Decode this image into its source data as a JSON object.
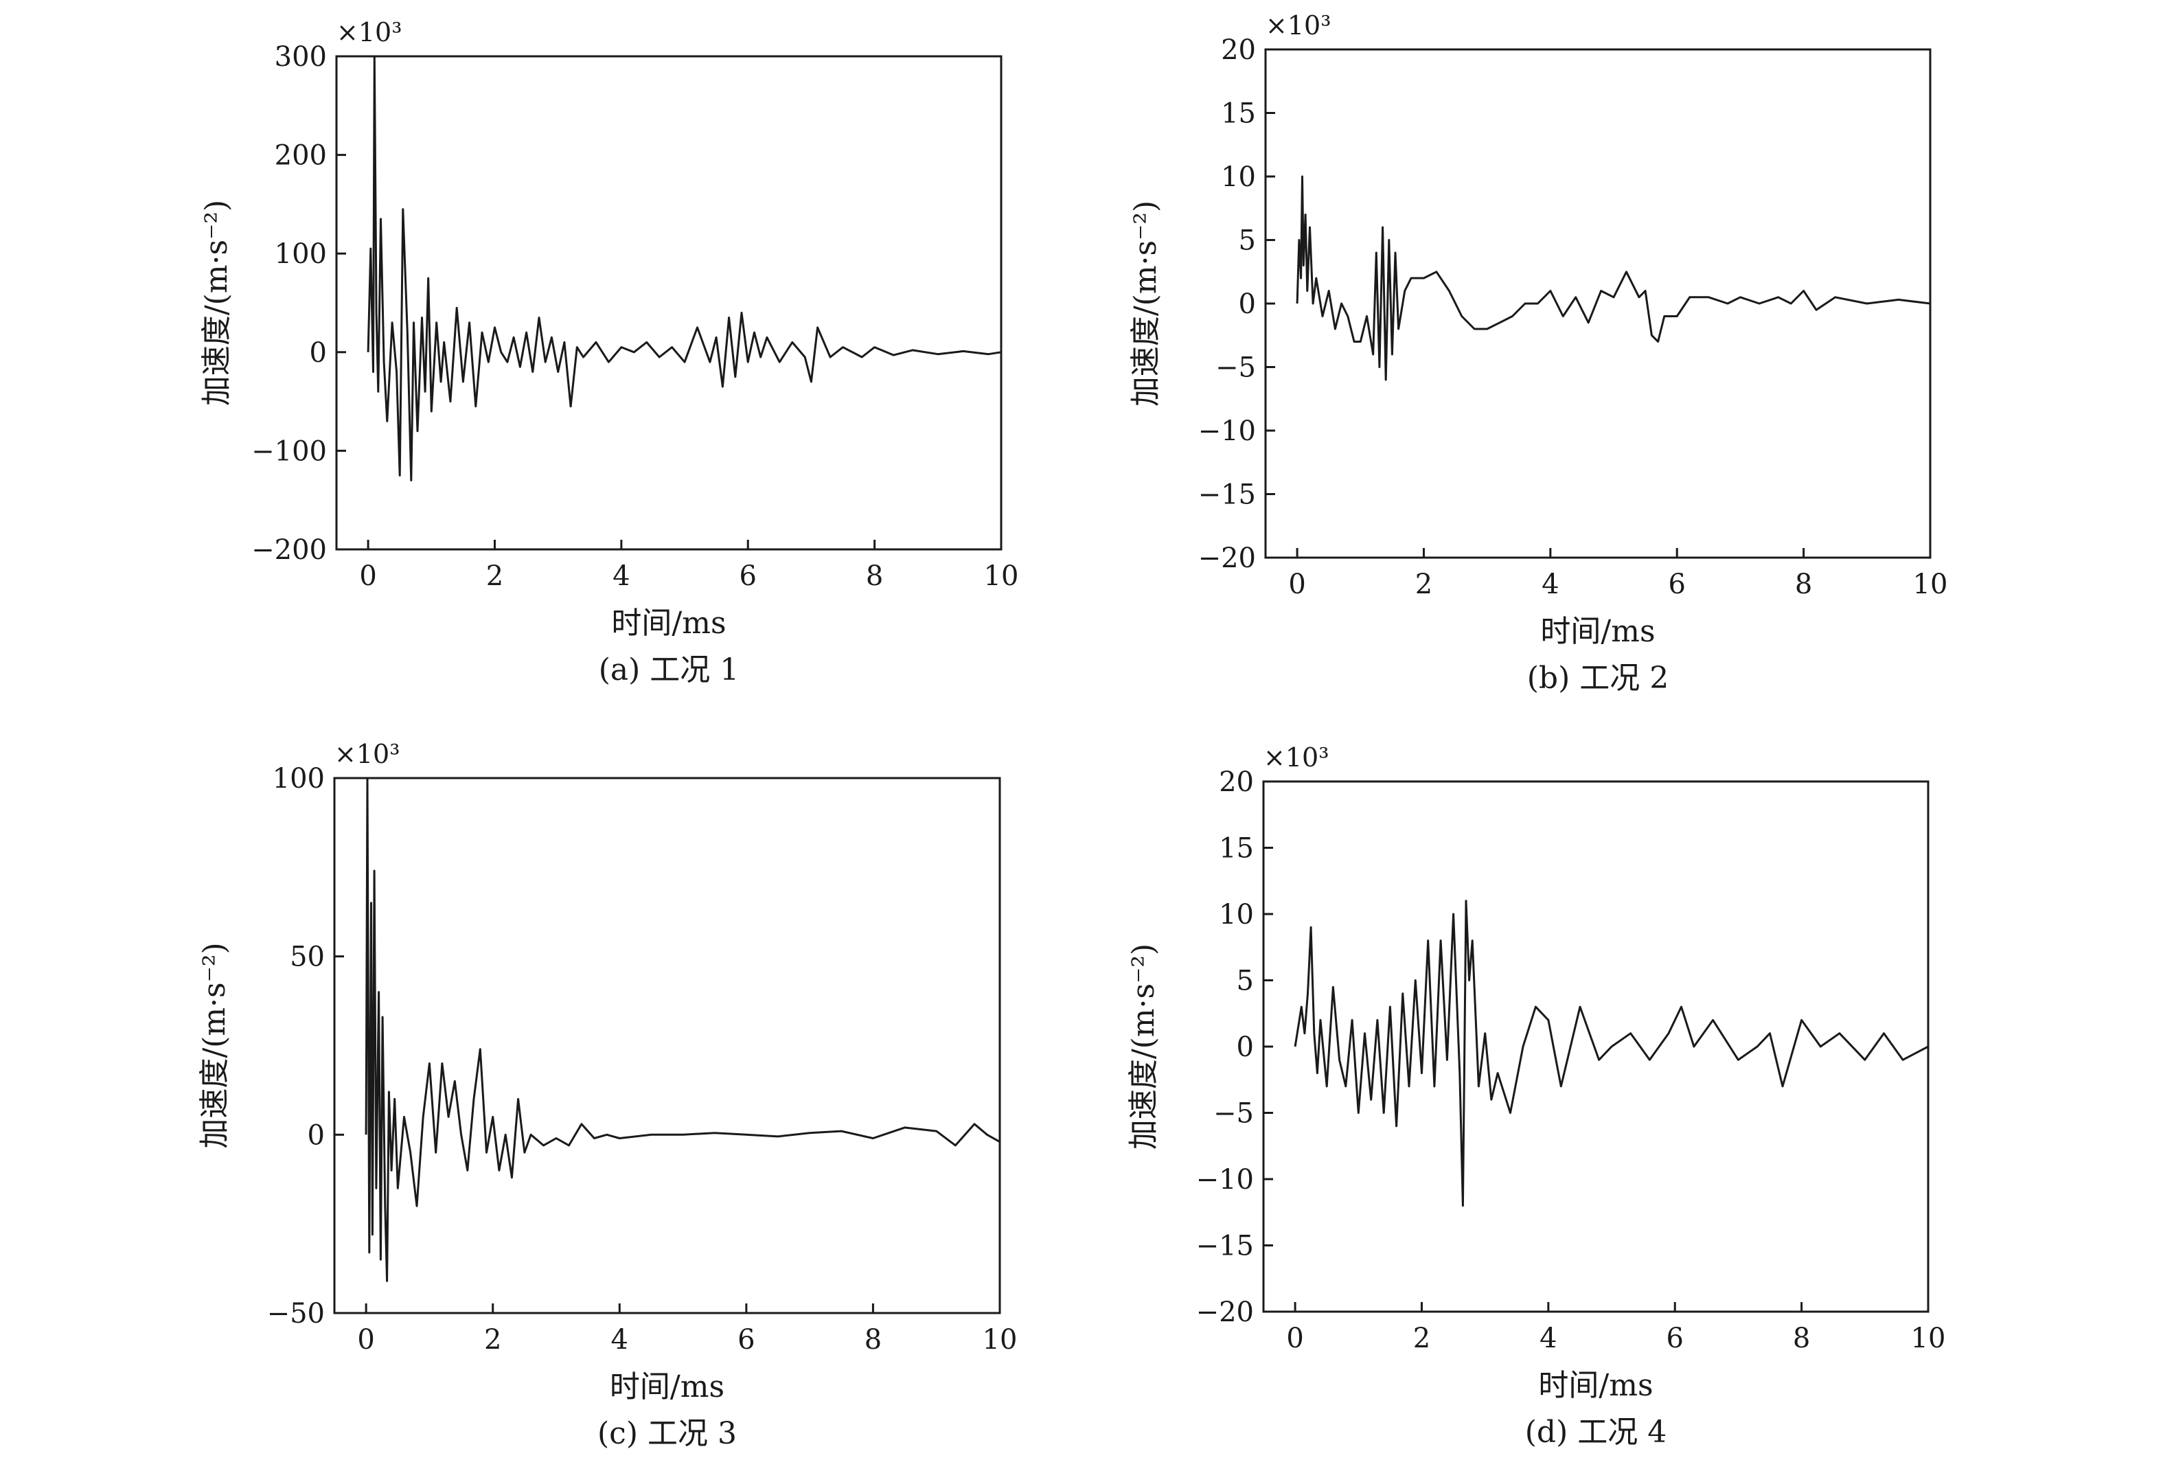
{
  "chart_data": [
    {
      "type": "line",
      "caption": "(a) 工况 1",
      "xlabel": "时间/ms",
      "ylabel": "加速度/(m·s⁻²)",
      "multiplier": "×10³",
      "xlim": [
        -0.5,
        10
      ],
      "ylim": [
        -200,
        300
      ],
      "xticks": [
        0,
        2,
        4,
        6,
        8,
        10
      ],
      "yticks": [
        -200,
        -100,
        0,
        100,
        200,
        300
      ],
      "xtick_labels": [
        "0",
        "2",
        "4",
        "6",
        "8",
        "10"
      ],
      "ytick_labels": [
        "−200",
        "−100",
        "0",
        "100",
        "200",
        "300"
      ],
      "series": [
        {
          "x": [
            0,
            0.04,
            0.08,
            0.1,
            0.13,
            0.16,
            0.2,
            0.25,
            0.3,
            0.38,
            0.45,
            0.5,
            0.55,
            0.62,
            0.68,
            0.72,
            0.78,
            0.85,
            0.9,
            0.95,
            1.0,
            1.08,
            1.15,
            1.2,
            1.3,
            1.4,
            1.5,
            1.6,
            1.7,
            1.8,
            1.9,
            2.0,
            2.1,
            2.2,
            2.3,
            2.4,
            2.5,
            2.6,
            2.7,
            2.8,
            2.9,
            3.0,
            3.1,
            3.2,
            3.3,
            3.4,
            3.6,
            3.8,
            4.0,
            4.2,
            4.4,
            4.6,
            4.8,
            5.0,
            5.2,
            5.4,
            5.5,
            5.6,
            5.7,
            5.8,
            5.9,
            6.0,
            6.1,
            6.2,
            6.3,
            6.5,
            6.7,
            6.9,
            7.0,
            7.1,
            7.3,
            7.5,
            7.8,
            8.0,
            8.3,
            8.6,
            9.0,
            9.4,
            9.8,
            10.0
          ],
          "y": [
            0,
            105,
            -20,
            300,
            40,
            -40,
            135,
            -10,
            -70,
            30,
            -20,
            -125,
            145,
            20,
            -130,
            30,
            -80,
            35,
            -40,
            75,
            -60,
            30,
            -30,
            10,
            -50,
            45,
            -30,
            30,
            -55,
            20,
            -10,
            25,
            0,
            -10,
            15,
            -15,
            20,
            -20,
            35,
            -10,
            15,
            -20,
            10,
            -55,
            5,
            -5,
            10,
            -10,
            5,
            0,
            10,
            -5,
            5,
            -10,
            25,
            -10,
            15,
            -35,
            35,
            -25,
            40,
            -10,
            20,
            -5,
            15,
            -10,
            10,
            -5,
            -30,
            25,
            -5,
            5,
            -5,
            5,
            -3,
            2,
            -2,
            1,
            -2,
            0
          ]
        }
      ]
    },
    {
      "type": "line",
      "caption": "(b) 工况 2",
      "xlabel": "时间/ms",
      "ylabel": "加速度/(m·s⁻²)",
      "multiplier": "×10³",
      "xlim": [
        -0.5,
        10
      ],
      "ylim": [
        -20,
        20
      ],
      "xticks": [
        0,
        2,
        4,
        6,
        8,
        10
      ],
      "yticks": [
        -20,
        -15,
        -10,
        -5,
        0,
        5,
        10,
        15,
        20
      ],
      "xtick_labels": [
        "0",
        "2",
        "4",
        "6",
        "8",
        "10"
      ],
      "ytick_labels": [
        "−20",
        "−15",
        "−10",
        "−5",
        "0",
        "5",
        "10",
        "15",
        "20"
      ],
      "series": [
        {
          "x": [
            0,
            0.03,
            0.06,
            0.08,
            0.1,
            0.13,
            0.16,
            0.2,
            0.25,
            0.3,
            0.4,
            0.5,
            0.6,
            0.7,
            0.8,
            0.9,
            1.0,
            1.1,
            1.2,
            1.25,
            1.3,
            1.35,
            1.4,
            1.45,
            1.5,
            1.55,
            1.6,
            1.7,
            1.8,
            2.0,
            2.2,
            2.4,
            2.6,
            2.8,
            3.0,
            3.2,
            3.4,
            3.6,
            3.8,
            4.0,
            4.2,
            4.4,
            4.6,
            4.8,
            5.0,
            5.2,
            5.4,
            5.5,
            5.6,
            5.7,
            5.8,
            6.0,
            6.2,
            6.5,
            6.8,
            7.0,
            7.3,
            7.6,
            7.8,
            8.0,
            8.2,
            8.5,
            9.0,
            9.5,
            10.0
          ],
          "y": [
            0,
            5,
            2,
            10,
            3,
            7,
            1,
            6,
            0,
            2,
            -1,
            1,
            -2,
            0,
            -1,
            -3,
            -3,
            -1,
            -4,
            4,
            -5,
            6,
            -6,
            5,
            -4,
            4,
            -2,
            1,
            2,
            2,
            2.5,
            1,
            -1,
            -2,
            -2,
            -1.5,
            -1,
            0,
            0,
            1,
            -1,
            0.5,
            -1.5,
            1,
            0.5,
            2.5,
            0.5,
            1,
            -2.5,
            -3,
            -1,
            -1,
            0.5,
            0.5,
            0,
            0.5,
            0,
            0.5,
            0,
            1,
            -0.5,
            0.5,
            0,
            0.3,
            0
          ]
        }
      ]
    },
    {
      "type": "line",
      "caption": "(c) 工况 3",
      "xlabel": "时间/ms",
      "ylabel": "加速度/(m·s⁻²)",
      "multiplier": "×10³",
      "xlim": [
        -0.5,
        10
      ],
      "ylim": [
        -50,
        100
      ],
      "xticks": [
        0,
        2,
        4,
        6,
        8,
        10
      ],
      "yticks": [
        -50,
        0,
        50,
        100
      ],
      "xtick_labels": [
        "0",
        "2",
        "4",
        "6",
        "8",
        "10"
      ],
      "ytick_labels": [
        "−50",
        "0",
        "50",
        "100"
      ],
      "series": [
        {
          "x": [
            0,
            0.02,
            0.05,
            0.08,
            0.1,
            0.13,
            0.16,
            0.2,
            0.23,
            0.26,
            0.3,
            0.33,
            0.36,
            0.4,
            0.45,
            0.5,
            0.6,
            0.7,
            0.8,
            0.9,
            1.0,
            1.1,
            1.2,
            1.3,
            1.4,
            1.5,
            1.6,
            1.7,
            1.8,
            1.9,
            2.0,
            2.1,
            2.2,
            2.3,
            2.4,
            2.5,
            2.6,
            2.8,
            3.0,
            3.2,
            3.4,
            3.6,
            3.8,
            4.0,
            4.5,
            5.0,
            5.5,
            6.0,
            6.5,
            7.0,
            7.5,
            8.0,
            8.5,
            9.0,
            9.3,
            9.6,
            9.8,
            10.0
          ],
          "y": [
            0,
            100,
            -33,
            65,
            -28,
            74,
            -15,
            40,
            -35,
            33,
            -20,
            -41,
            12,
            -10,
            10,
            -15,
            5,
            -5,
            -20,
            5,
            20,
            -5,
            20,
            5,
            15,
            0,
            -10,
            10,
            24,
            -5,
            5,
            -10,
            0,
            -12,
            10,
            -5,
            0,
            -3,
            -1,
            -3,
            3,
            -1,
            0,
            -1,
            0,
            0,
            0.5,
            0,
            -0.5,
            0.5,
            1,
            -1,
            2,
            1,
            -3,
            3,
            0,
            -2
          ]
        }
      ]
    },
    {
      "type": "line",
      "caption": "(d) 工况 4",
      "xlabel": "时间/ms",
      "ylabel": "加速度/(m·s⁻²)",
      "multiplier": "×10³",
      "xlim": [
        -0.5,
        10
      ],
      "ylim": [
        -20,
        20
      ],
      "xticks": [
        0,
        2,
        4,
        6,
        8,
        10
      ],
      "yticks": [
        -20,
        -15,
        -10,
        -5,
        0,
        5,
        10,
        15,
        20
      ],
      "xtick_labels": [
        "0",
        "2",
        "4",
        "6",
        "8",
        "10"
      ],
      "ytick_labels": [
        "−20",
        "−15",
        "−10",
        "−5",
        "0",
        "5",
        "10",
        "15",
        "20"
      ],
      "series": [
        {
          "x": [
            0,
            0.1,
            0.15,
            0.2,
            0.25,
            0.3,
            0.35,
            0.4,
            0.5,
            0.6,
            0.7,
            0.8,
            0.9,
            1.0,
            1.1,
            1.2,
            1.3,
            1.4,
            1.5,
            1.6,
            1.7,
            1.8,
            1.9,
            2.0,
            2.1,
            2.2,
            2.3,
            2.4,
            2.5,
            2.6,
            2.65,
            2.7,
            2.75,
            2.8,
            2.9,
            3.0,
            3.1,
            3.2,
            3.4,
            3.6,
            3.8,
            4.0,
            4.2,
            4.5,
            4.8,
            5.0,
            5.3,
            5.6,
            5.9,
            6.1,
            6.3,
            6.6,
            7.0,
            7.3,
            7.5,
            7.7,
            8.0,
            8.3,
            8.6,
            9.0,
            9.3,
            9.6,
            10.0
          ],
          "y": [
            0,
            3,
            1,
            4,
            9,
            1,
            -2,
            2,
            -3,
            4.5,
            -1,
            -3,
            2,
            -5,
            1,
            -4,
            2,
            -5,
            3,
            -6,
            4,
            -3,
            5,
            -2,
            8,
            -3,
            8,
            -1,
            10,
            -2,
            -12,
            11,
            5,
            8,
            -3,
            1,
            -4,
            -2,
            -5,
            0,
            3,
            2,
            -3,
            3,
            -1,
            0,
            1,
            -1,
            1,
            3,
            0,
            2,
            -1,
            0,
            1,
            -3,
            2,
            0,
            1,
            -1,
            1,
            -1,
            0
          ]
        }
      ]
    }
  ]
}
